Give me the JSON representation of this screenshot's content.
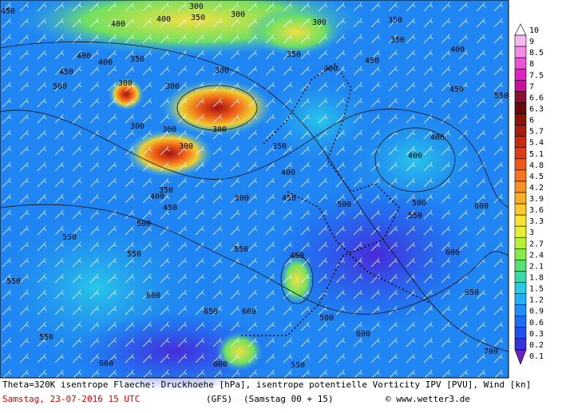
{
  "map": {
    "contour_labels": [
      "450",
      "300",
      "300",
      "350",
      "400",
      "400",
      "400",
      "400",
      "350",
      "450",
      "500",
      "300",
      "300",
      "300",
      "300",
      "300",
      "300",
      "300",
      "350",
      "400",
      "450",
      "500",
      "550",
      "550",
      "550",
      "600",
      "650",
      "600",
      "550",
      "450",
      "500",
      "600",
      "700",
      "650",
      "600",
      "600",
      "550",
      "500",
      "400",
      "400",
      "450",
      "400",
      "550",
      "450",
      "400",
      "350",
      "300",
      "350",
      "350",
      "350",
      "400",
      "450",
      "500",
      "500",
      "550",
      "600",
      "550",
      "600"
    ]
  },
  "legend": {
    "items": [
      {
        "label": "10",
        "color": "#ffffff"
      },
      {
        "label": "9",
        "color": "#f7b8f0"
      },
      {
        "label": "8.5",
        "color": "#f48ae6"
      },
      {
        "label": "8",
        "color": "#ee50d6"
      },
      {
        "label": "7.5",
        "color": "#e020c0"
      },
      {
        "label": "7",
        "color": "#c8109c"
      },
      {
        "label": "6.6",
        "color": "#8a1030"
      },
      {
        "label": "6.3",
        "color": "#6a0a0a"
      },
      {
        "label": "6",
        "color": "#8a1408"
      },
      {
        "label": "5.7",
        "color": "#a81e0c"
      },
      {
        "label": "5.4",
        "color": "#c82a10"
      },
      {
        "label": "5.1",
        "color": "#e03c14"
      },
      {
        "label": "4.8",
        "color": "#f05818"
      },
      {
        "label": "4.5",
        "color": "#f87420"
      },
      {
        "label": "4.2",
        "color": "#fa9024"
      },
      {
        "label": "3.9",
        "color": "#fcae28"
      },
      {
        "label": "3.6",
        "color": "#fcca2c"
      },
      {
        "label": "3.3",
        "color": "#f8e430"
      },
      {
        "label": "3",
        "color": "#e4f030"
      },
      {
        "label": "2.7",
        "color": "#b8f038"
      },
      {
        "label": "2.4",
        "color": "#88ec48"
      },
      {
        "label": "2.1",
        "color": "#58e070"
      },
      {
        "label": "1.8",
        "color": "#38d8a8"
      },
      {
        "label": "1.5",
        "color": "#28cce0"
      },
      {
        "label": "1.2",
        "color": "#22b0f4"
      },
      {
        "label": "0.9",
        "color": "#2090f6"
      },
      {
        "label": "0.6",
        "color": "#1e6ef4"
      },
      {
        "label": "0.3",
        "color": "#2050ee"
      },
      {
        "label": "0.2",
        "color": "#3434dc"
      },
      {
        "label": "0.1",
        "color": "#6a20cc"
      }
    ]
  },
  "footer": {
    "line1": "Theta=320K isentrope Flaeche: Druckhoehe [hPa], isentrope potentielle Vorticity IPV [PVU], Wind [kn]",
    "date": "Samstag, 23-07-2016  15 UTC",
    "model": "(GFS)",
    "run": "(Samstag 00 + 15)",
    "credit": "© www.wetter3.de"
  }
}
